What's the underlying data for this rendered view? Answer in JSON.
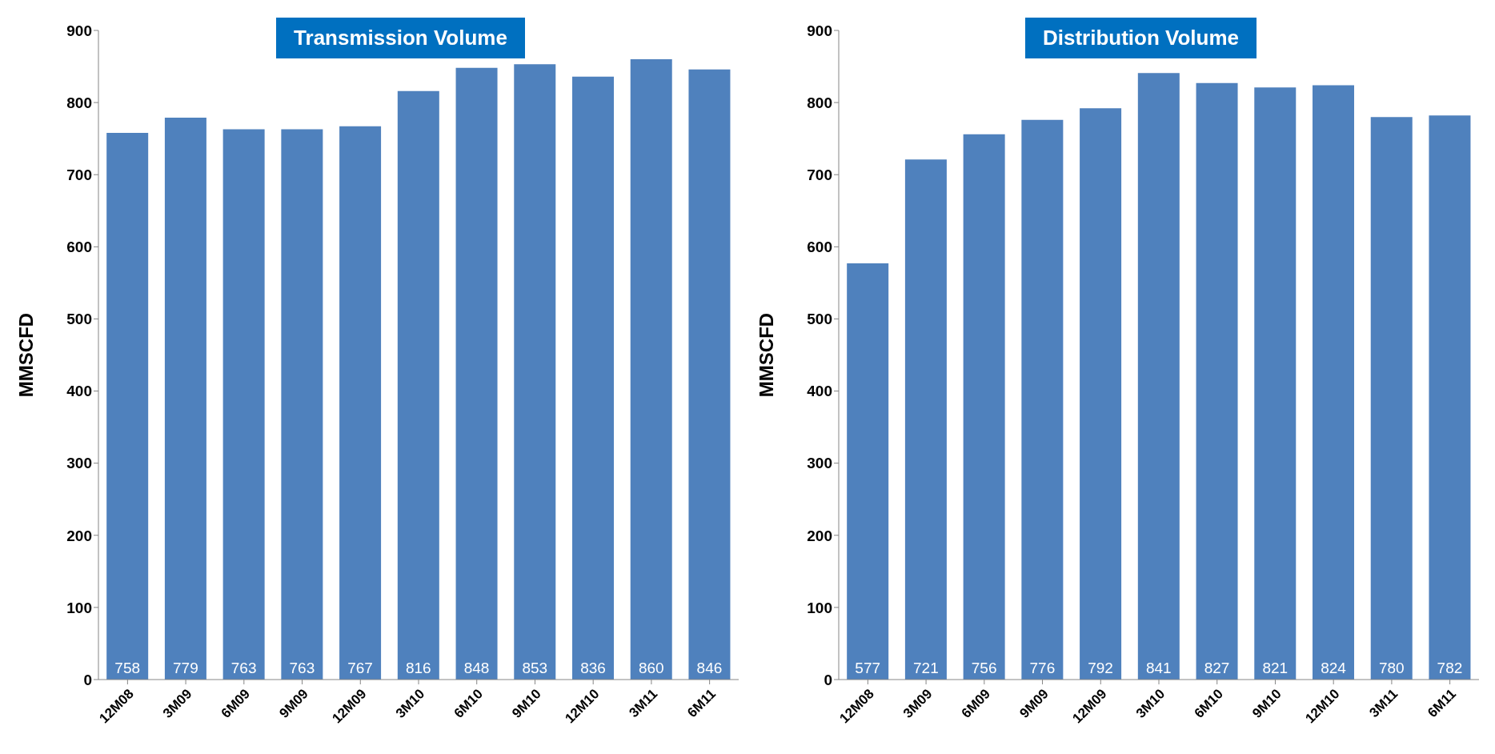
{
  "chart_data": [
    {
      "type": "bar",
      "title": "Transmission Volume",
      "ylabel": "MMSCFD",
      "categories": [
        "12M08",
        "3M09",
        "6M09",
        "9M09",
        "12M09",
        "3M10",
        "6M10",
        "9M10",
        "12M10",
        "3M11",
        "6M11"
      ],
      "values": [
        758,
        779,
        763,
        763,
        767,
        816,
        848,
        853,
        836,
        860,
        846
      ],
      "color": "#4f81bd",
      "ylim": [
        0,
        900
      ],
      "yticks": [
        0,
        100,
        200,
        300,
        400,
        500,
        600,
        700,
        800,
        900
      ],
      "data_labels": true,
      "grid": false,
      "legend": false
    },
    {
      "type": "bar",
      "title": "Distribution Volume",
      "ylabel": "MMSCFD",
      "categories": [
        "12M08",
        "3M09",
        "6M09",
        "9M09",
        "12M09",
        "3M10",
        "6M10",
        "9M10",
        "12M10",
        "3M11",
        "6M11"
      ],
      "values": [
        577,
        721,
        756,
        776,
        792,
        841,
        827,
        821,
        824,
        780,
        782
      ],
      "color": "#4f81bd",
      "ylim": [
        0,
        900
      ],
      "yticks": [
        0,
        100,
        200,
        300,
        400,
        500,
        600,
        700,
        800,
        900
      ],
      "data_labels": true,
      "grid": false,
      "legend": false
    }
  ]
}
